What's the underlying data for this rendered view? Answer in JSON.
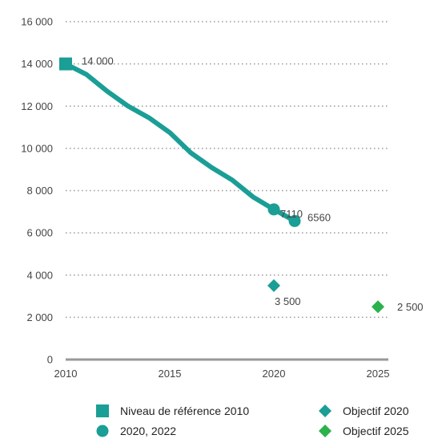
{
  "chart_data": {
    "type": "line",
    "title": "",
    "xlabel": "",
    "ylabel": "",
    "xlim": [
      2010,
      2025
    ],
    "ylim": [
      0,
      16000
    ],
    "x_ticks": [
      2010,
      2015,
      2020,
      2025
    ],
    "y_ticks": [
      0,
      2000,
      4000,
      6000,
      8000,
      10000,
      12000,
      14000,
      16000
    ],
    "x_tick_labels": [
      "2010",
      "2015",
      "2020",
      "2025"
    ],
    "y_tick_labels": [
      "0",
      "2 000",
      "4 000",
      "6 000",
      "8 000",
      "10 000",
      "12 000",
      "14 000",
      "16 000"
    ],
    "grid": "horizontal dotted",
    "legend_position": "bottom",
    "trend_line": {
      "color": "#1a9e96",
      "points": [
        {
          "x": 2010,
          "y": 14000
        },
        {
          "x": 2011,
          "y": 13500
        },
        {
          "x": 2012,
          "y": 12700
        },
        {
          "x": 2013,
          "y": 12000
        },
        {
          "x": 2014,
          "y": 11450
        },
        {
          "x": 2015,
          "y": 10750
        },
        {
          "x": 2016,
          "y": 9800
        },
        {
          "x": 2017,
          "y": 9100
        },
        {
          "x": 2018,
          "y": 8500
        },
        {
          "x": 2019,
          "y": 7700
        },
        {
          "x": 2020,
          "y": 7110
        },
        {
          "x": 2021,
          "y": 6560
        }
      ]
    },
    "series": [
      {
        "name": "Niveau de référence 2010",
        "marker": "square",
        "color": "#1a9e96",
        "points": [
          {
            "x": 2010,
            "y": 14000,
            "label": "14 000"
          }
        ]
      },
      {
        "name": "2020, 2022",
        "marker": "circle",
        "color": "#1a9e96",
        "points": [
          {
            "x": 2020,
            "y": 7110,
            "label": "7110"
          },
          {
            "x": 2021,
            "y": 6560,
            "label": "6560"
          }
        ]
      },
      {
        "name": "Objectif 2020",
        "marker": "diamond",
        "color": "#1a9e96",
        "points": [
          {
            "x": 2020,
            "y": 3500,
            "label": "3 500"
          }
        ]
      },
      {
        "name": "Objectif 2025",
        "marker": "diamond",
        "color": "#2bb24c",
        "points": [
          {
            "x": 2025,
            "y": 2500,
            "label": "2 500"
          }
        ]
      }
    ]
  }
}
